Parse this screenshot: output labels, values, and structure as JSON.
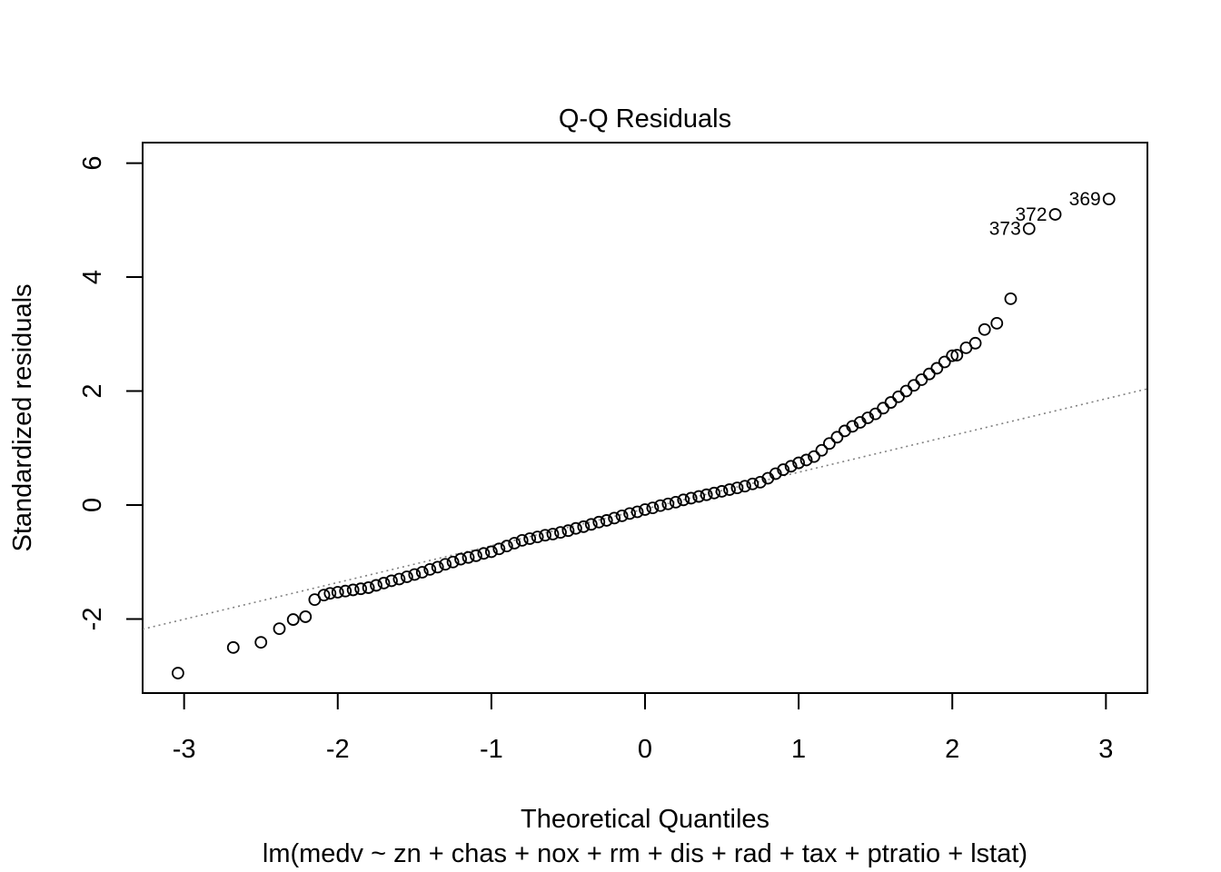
{
  "chart_data": {
    "type": "scatter",
    "title": "Q-Q Residuals",
    "xlabel": "Theoretical Quantiles",
    "ylabel": "Standardized residuals",
    "subtitle": "lm(medv ~ zn + chas + nox + rm + dis + rad + tax + ptratio + lstat)",
    "xlim": [
      -3.27,
      3.27
    ],
    "ylim": [
      -3.3,
      6.36
    ],
    "x_ticks": [
      "-3",
      "-2",
      "-1",
      "0",
      "1",
      "2",
      "3"
    ],
    "y_ticks": [
      "-2",
      "0",
      "2",
      "4",
      "6"
    ],
    "grid": false,
    "reference_line": {
      "intercept": -0.07,
      "slope": 0.645,
      "style": "dotted",
      "color": "#808080"
    },
    "labeled_points": [
      {
        "label": "369",
        "x": 3.02,
        "y": 5.37
      },
      {
        "label": "372",
        "x": 2.67,
        "y": 5.1
      },
      {
        "label": "373",
        "x": 2.5,
        "y": 4.85
      }
    ],
    "points": [
      [
        -3.04,
        -2.95
      ],
      [
        -2.68,
        -2.5
      ],
      [
        -2.5,
        -2.41
      ],
      [
        -2.38,
        -2.17
      ],
      [
        -2.29,
        -2.01
      ],
      [
        -2.21,
        -1.96
      ],
      [
        -2.15,
        -1.66
      ],
      [
        -2.09,
        -1.58
      ],
      [
        -2.05,
        -1.55
      ],
      [
        -2.0,
        -1.53
      ],
      [
        -1.95,
        -1.51
      ],
      [
        -1.9,
        -1.49
      ],
      [
        -1.85,
        -1.47
      ],
      [
        -1.8,
        -1.45
      ],
      [
        -1.75,
        -1.41
      ],
      [
        -1.7,
        -1.37
      ],
      [
        -1.65,
        -1.33
      ],
      [
        -1.6,
        -1.3
      ],
      [
        -1.55,
        -1.26
      ],
      [
        -1.5,
        -1.22
      ],
      [
        -1.45,
        -1.18
      ],
      [
        -1.4,
        -1.13
      ],
      [
        -1.35,
        -1.09
      ],
      [
        -1.3,
        -1.04
      ],
      [
        -1.25,
        -1.0
      ],
      [
        -1.2,
        -0.95
      ],
      [
        -1.15,
        -0.92
      ],
      [
        -1.1,
        -0.89
      ],
      [
        -1.05,
        -0.85
      ],
      [
        -1.0,
        -0.82
      ],
      [
        -0.95,
        -0.77
      ],
      [
        -0.9,
        -0.72
      ],
      [
        -0.85,
        -0.67
      ],
      [
        -0.8,
        -0.62
      ],
      [
        -0.75,
        -0.59
      ],
      [
        -0.7,
        -0.56
      ],
      [
        -0.65,
        -0.53
      ],
      [
        -0.6,
        -0.51
      ],
      [
        -0.55,
        -0.48
      ],
      [
        -0.5,
        -0.45
      ],
      [
        -0.45,
        -0.41
      ],
      [
        -0.4,
        -0.38
      ],
      [
        -0.35,
        -0.34
      ],
      [
        -0.3,
        -0.3
      ],
      [
        -0.25,
        -0.27
      ],
      [
        -0.2,
        -0.23
      ],
      [
        -0.15,
        -0.19
      ],
      [
        -0.1,
        -0.15
      ],
      [
        -0.05,
        -0.12
      ],
      [
        0.0,
        -0.08
      ],
      [
        0.05,
        -0.05
      ],
      [
        0.1,
        -0.01
      ],
      [
        0.15,
        0.02
      ],
      [
        0.2,
        0.05
      ],
      [
        0.25,
        0.09
      ],
      [
        0.3,
        0.12
      ],
      [
        0.35,
        0.15
      ],
      [
        0.4,
        0.18
      ],
      [
        0.45,
        0.21
      ],
      [
        0.5,
        0.24
      ],
      [
        0.55,
        0.27
      ],
      [
        0.6,
        0.3
      ],
      [
        0.65,
        0.33
      ],
      [
        0.7,
        0.37
      ],
      [
        0.75,
        0.4
      ],
      [
        0.8,
        0.47
      ],
      [
        0.85,
        0.55
      ],
      [
        0.9,
        0.62
      ],
      [
        0.95,
        0.68
      ],
      [
        1.0,
        0.74
      ],
      [
        1.05,
        0.79
      ],
      [
        1.1,
        0.85
      ],
      [
        1.15,
        0.96
      ],
      [
        1.2,
        1.08
      ],
      [
        1.25,
        1.19
      ],
      [
        1.3,
        1.3
      ],
      [
        1.35,
        1.38
      ],
      [
        1.4,
        1.45
      ],
      [
        1.45,
        1.53
      ],
      [
        1.5,
        1.6
      ],
      [
        1.55,
        1.7
      ],
      [
        1.6,
        1.8
      ],
      [
        1.65,
        1.9
      ],
      [
        1.7,
        2.0
      ],
      [
        1.75,
        2.1
      ],
      [
        1.8,
        2.2
      ],
      [
        1.85,
        2.3
      ],
      [
        1.9,
        2.4
      ],
      [
        1.95,
        2.51
      ],
      [
        2.0,
        2.62
      ],
      [
        2.03,
        2.63
      ],
      [
        2.09,
        2.76
      ],
      [
        2.15,
        2.84
      ],
      [
        2.21,
        3.08
      ],
      [
        2.29,
        3.19
      ],
      [
        2.38,
        3.62
      ],
      [
        2.5,
        4.85
      ],
      [
        2.67,
        5.1
      ],
      [
        3.02,
        5.37
      ]
    ]
  }
}
